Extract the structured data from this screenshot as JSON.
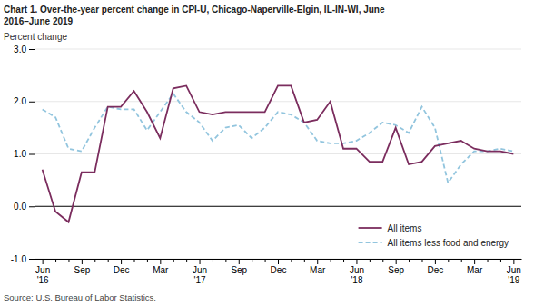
{
  "chart_data": {
    "type": "line",
    "title": "Chart 1. Over-the-year percent change in CPI-U, Chicago-Naperville-Elgin, IL-IN-WI, June\n2016–June 2019",
    "ylabel": "Percent change",
    "annotations": [
      "Source: U.S. Bureau of Labor Statistics."
    ],
    "categories": [
      "Jun\n'16",
      null,
      null,
      "Sep",
      null,
      null,
      "Dec",
      null,
      null,
      "Mar",
      null,
      null,
      "Jun\n'17",
      null,
      null,
      "Sep",
      null,
      null,
      "Dec",
      null,
      null,
      "Mar",
      null,
      null,
      "Jun\n'18",
      null,
      null,
      "Sep",
      null,
      null,
      "Dec",
      null,
      null,
      "Mar",
      null,
      null,
      "Jun\n'19"
    ],
    "series": [
      {
        "name": "All items",
        "color": "#7B2D5E",
        "line_style": "solid",
        "values": [
          0.7,
          -0.1,
          -0.3,
          0.65,
          0.65,
          1.9,
          1.9,
          2.2,
          1.8,
          1.3,
          2.25,
          2.3,
          1.8,
          1.75,
          1.8,
          1.8,
          1.8,
          1.8,
          2.3,
          2.3,
          1.6,
          1.65,
          2.0,
          1.1,
          1.1,
          0.85,
          0.85,
          1.5,
          0.8,
          0.85,
          1.15,
          1.2,
          1.25,
          1.1,
          1.05,
          1.05,
          1.0
        ]
      },
      {
        "name": "All items less food and energy",
        "color": "#92C5DE",
        "line_style": "dashed",
        "values": [
          1.85,
          1.7,
          1.1,
          1.05,
          1.5,
          1.9,
          1.85,
          1.85,
          1.45,
          1.8,
          2.15,
          1.8,
          1.6,
          1.25,
          1.5,
          1.55,
          1.3,
          1.5,
          1.8,
          1.75,
          1.6,
          1.25,
          1.2,
          1.2,
          1.25,
          1.4,
          1.6,
          1.55,
          1.4,
          1.9,
          1.5,
          0.45,
          0.8,
          1.05,
          1.05,
          1.1,
          1.05
        ]
      }
    ],
    "ylim": [
      -1.0,
      3.0
    ],
    "yticks": [
      {
        "value": -1.0,
        "label": "-1.0"
      },
      {
        "value": 0.0,
        "label": "0.0"
      },
      {
        "value": 1.0,
        "label": "1.0"
      },
      {
        "value": 2.0,
        "label": "2.0"
      },
      {
        "value": 3.0,
        "label": "3.0"
      }
    ],
    "grid": true,
    "legend": "lower right"
  }
}
